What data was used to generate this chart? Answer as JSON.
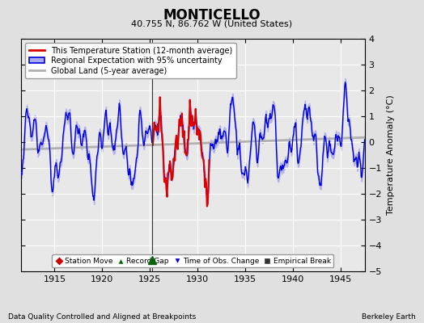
{
  "title": "MONTICELLO",
  "subtitle": "40.755 N, 86.762 W (United States)",
  "ylabel": "Temperature Anomaly (°C)",
  "xlabel_left": "Data Quality Controlled and Aligned at Breakpoints",
  "xlabel_right": "Berkeley Earth",
  "xlim": [
    1911.5,
    1947.5
  ],
  "ylim": [
    -5,
    4
  ],
  "yticks": [
    -5,
    -4,
    -3,
    -2,
    -1,
    0,
    1,
    2,
    3,
    4
  ],
  "xticks": [
    1915,
    1920,
    1925,
    1930,
    1935,
    1940,
    1945
  ],
  "bg_color": "#e0e0e0",
  "plot_bg_color": "#e8e8e8",
  "grid_color": "#ffffff",
  "blue_line_color": "#0000dd",
  "blue_shade_color": "#aaaaee",
  "red_line_color": "#dd0000",
  "gray_line_color": "#b0b0b0",
  "vertical_line_x": 1925.25,
  "record_gap_x": 1925.25,
  "station_data_start": 1925.3,
  "station_data_end": 1931.2
}
